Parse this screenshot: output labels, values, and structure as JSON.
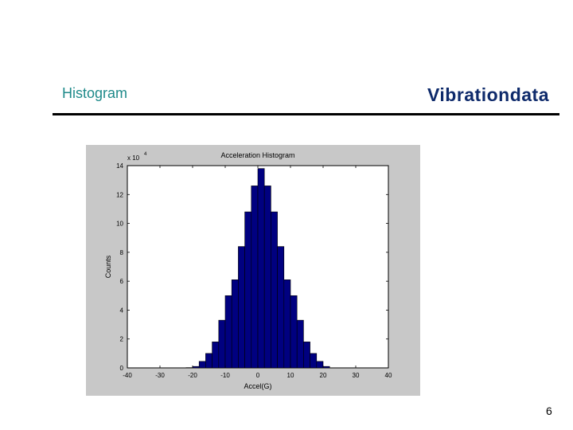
{
  "slide": {
    "title": "Histogram",
    "brand": "Vibrationdata",
    "page_number": "6"
  },
  "colors": {
    "title": "#1f8a8a",
    "brand": "#0e2a6b",
    "figure_background": "#c8c8c8",
    "bar_fill": "#000080"
  },
  "chart_data": {
    "type": "bar",
    "title": "Acceleration Histogram",
    "xlabel": "Accel(G)",
    "ylabel": "Counts",
    "y_exponent_label": "x 10",
    "y_exponent_power": "4",
    "xlim": [
      -40,
      40
    ],
    "ylim": [
      0,
      14
    ],
    "x_ticks": [
      -40,
      -30,
      -20,
      -10,
      0,
      10,
      20,
      30,
      40
    ],
    "y_ticks": [
      0,
      2,
      4,
      6,
      8,
      10,
      12,
      14
    ],
    "bin_width": 2,
    "bin_centers": [
      -21,
      -19,
      -17,
      -15,
      -13,
      -11,
      -9,
      -7,
      -5,
      -3,
      -1,
      1,
      3,
      5,
      7,
      9,
      11,
      13,
      15,
      17,
      19,
      21
    ],
    "values": [
      0.02,
      0.1,
      0.45,
      1.0,
      1.8,
      3.3,
      5.0,
      6.1,
      8.4,
      10.8,
      12.6,
      13.8,
      12.6,
      10.8,
      8.4,
      6.1,
      5.0,
      3.3,
      1.8,
      1.0,
      0.45,
      0.1
    ],
    "grid": false
  }
}
